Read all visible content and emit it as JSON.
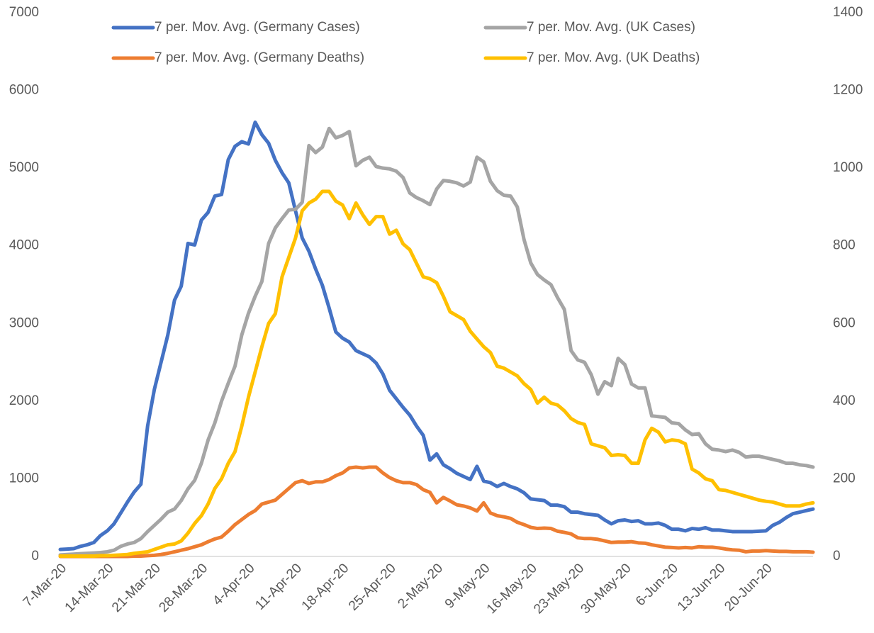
{
  "chart_data": {
    "type": "line",
    "categories": [
      "7-Mar-20",
      null,
      null,
      null,
      null,
      null,
      null,
      "14-Mar-20",
      null,
      null,
      null,
      null,
      null,
      null,
      "21-Mar-20",
      null,
      null,
      null,
      null,
      null,
      null,
      "28-Mar-20",
      null,
      null,
      null,
      null,
      null,
      null,
      "4-Apr-20",
      null,
      null,
      null,
      null,
      null,
      null,
      "11-Apr-20",
      null,
      null,
      null,
      null,
      null,
      null,
      "18-Apr-20",
      null,
      null,
      null,
      null,
      null,
      null,
      "25-Apr-20",
      null,
      null,
      null,
      null,
      null,
      null,
      "2-May-20",
      null,
      null,
      null,
      null,
      null,
      null,
      "9-May-20",
      null,
      null,
      null,
      null,
      null,
      null,
      "16-May-20",
      null,
      null,
      null,
      null,
      null,
      null,
      "23-May-20",
      null,
      null,
      null,
      null,
      null,
      null,
      "30-May-20",
      null,
      null,
      null,
      null,
      null,
      null,
      "6-Jun-20",
      null,
      null,
      null,
      null,
      null,
      null,
      "13-Jun-20",
      null,
      null,
      null,
      null,
      null,
      null,
      "20-Jun-20",
      null,
      null,
      null,
      null,
      null,
      null,
      null
    ],
    "series": [
      {
        "name": "7 per. Mov. Avg. (Germany Cases)",
        "color": "#4472c4",
        "values": [
          90,
          95,
          100,
          130,
          150,
          180,
          270,
          330,
          420,
          560,
          700,
          830,
          930,
          1680,
          2150,
          2500,
          2850,
          3300,
          3480,
          4030,
          4010,
          4330,
          4430,
          4640,
          4660,
          5110,
          5280,
          5340,
          5310,
          5590,
          5430,
          5320,
          5100,
          4940,
          4810,
          4450,
          4100,
          3930,
          3700,
          3490,
          3200,
          2890,
          2810,
          2760,
          2650,
          2610,
          2570,
          2490,
          2350,
          2140,
          2030,
          1920,
          1820,
          1680,
          1560,
          1240,
          1320,
          1180,
          1130,
          1070,
          1030,
          990,
          1160,
          970,
          950,
          900,
          940,
          900,
          870,
          820,
          740,
          730,
          720,
          660,
          660,
          640,
          570,
          570,
          550,
          540,
          530,
          470,
          420,
          460,
          470,
          450,
          460,
          420,
          420,
          430,
          400,
          350,
          350,
          330,
          360,
          350,
          370,
          340,
          340,
          330,
          320,
          320,
          320,
          320,
          325,
          330,
          400,
          440,
          500,
          550,
          570,
          590,
          610
        ]
      },
      {
        "name": "7 per. Mov. Avg. (UK Cases)",
        "color": "#a5a5a5",
        "values": [
          20,
          25,
          30,
          35,
          40,
          45,
          50,
          60,
          80,
          130,
          160,
          180,
          230,
          320,
          400,
          480,
          570,
          610,
          720,
          870,
          980,
          1200,
          1500,
          1720,
          2000,
          2230,
          2450,
          2850,
          3130,
          3350,
          3540,
          4030,
          4230,
          4350,
          4460,
          4470,
          4560,
          5290,
          5200,
          5270,
          5510,
          5390,
          5420,
          5470,
          5030,
          5100,
          5140,
          5020,
          5000,
          4990,
          4960,
          4880,
          4680,
          4620,
          4580,
          4530,
          4730,
          4840,
          4830,
          4810,
          4770,
          4820,
          5140,
          5080,
          4830,
          4710,
          4650,
          4640,
          4500,
          4080,
          3780,
          3630,
          3560,
          3500,
          3330,
          3180,
          2650,
          2530,
          2500,
          2340,
          2090,
          2250,
          2200,
          2550,
          2470,
          2220,
          2170,
          2170,
          1810,
          1800,
          1790,
          1720,
          1710,
          1630,
          1570,
          1580,
          1450,
          1380,
          1370,
          1350,
          1370,
          1340,
          1280,
          1290,
          1290,
          1270,
          1250,
          1230,
          1200,
          1200,
          1180,
          1170,
          1150
        ]
      },
      {
        "name": "7 per. Mov. Avg. (Germany Deaths)",
        "color": "#ed7d31",
        "axis": "y2",
        "values": [
          0,
          0,
          0,
          0,
          0,
          0,
          0,
          0,
          0,
          0,
          0,
          1,
          1,
          2,
          3,
          5,
          8,
          12,
          16,
          20,
          25,
          30,
          38,
          45,
          50,
          65,
          82,
          95,
          108,
          118,
          135,
          140,
          145,
          160,
          175,
          190,
          195,
          188,
          192,
          192,
          198,
          208,
          215,
          228,
          230,
          228,
          230,
          230,
          215,
          203,
          195,
          190,
          190,
          185,
          172,
          165,
          138,
          152,
          143,
          133,
          130,
          125,
          117,
          138,
          112,
          105,
          102,
          98,
          88,
          82,
          75,
          72,
          73,
          72,
          65,
          62,
          58,
          48,
          46,
          46,
          44,
          40,
          36,
          37,
          37,
          38,
          35,
          34,
          30,
          27,
          24,
          23,
          22,
          23,
          22,
          25,
          24,
          24,
          22,
          19,
          17,
          16,
          12,
          14,
          14,
          15,
          14,
          13,
          13,
          12,
          12,
          12,
          11
        ]
      },
      {
        "name": "7 per. Mov. Avg. (UK Deaths)",
        "color": "#ffc000",
        "axis": "y2",
        "values": [
          1,
          1,
          1,
          1,
          1,
          1,
          2,
          2,
          3,
          4,
          5,
          8,
          10,
          12,
          18,
          24,
          30,
          32,
          40,
          60,
          85,
          105,
          135,
          175,
          200,
          240,
          270,
          335,
          410,
          475,
          540,
          600,
          625,
          720,
          770,
          820,
          890,
          910,
          920,
          940,
          940,
          915,
          905,
          870,
          910,
          880,
          855,
          875,
          875,
          830,
          840,
          805,
          790,
          755,
          720,
          715,
          705,
          670,
          630,
          620,
          610,
          580,
          560,
          540,
          525,
          490,
          485,
          475,
          465,
          445,
          430,
          395,
          410,
          395,
          390,
          375,
          355,
          345,
          340,
          290,
          285,
          280,
          260,
          262,
          260,
          240,
          240,
          300,
          330,
          320,
          295,
          300,
          298,
          290,
          225,
          215,
          200,
          195,
          172,
          170,
          165,
          160,
          155,
          150,
          145,
          142,
          140,
          135,
          130,
          130,
          130,
          135,
          138
        ]
      }
    ],
    "ylim": [
      0,
      7000
    ],
    "yticks": [
      0,
      1000,
      2000,
      3000,
      4000,
      5000,
      6000,
      7000
    ],
    "y2lim": [
      0,
      1400
    ],
    "y2ticks": [
      0,
      200,
      400,
      600,
      800,
      1000,
      1200,
      1400
    ],
    "grid": false,
    "legend": "top"
  }
}
